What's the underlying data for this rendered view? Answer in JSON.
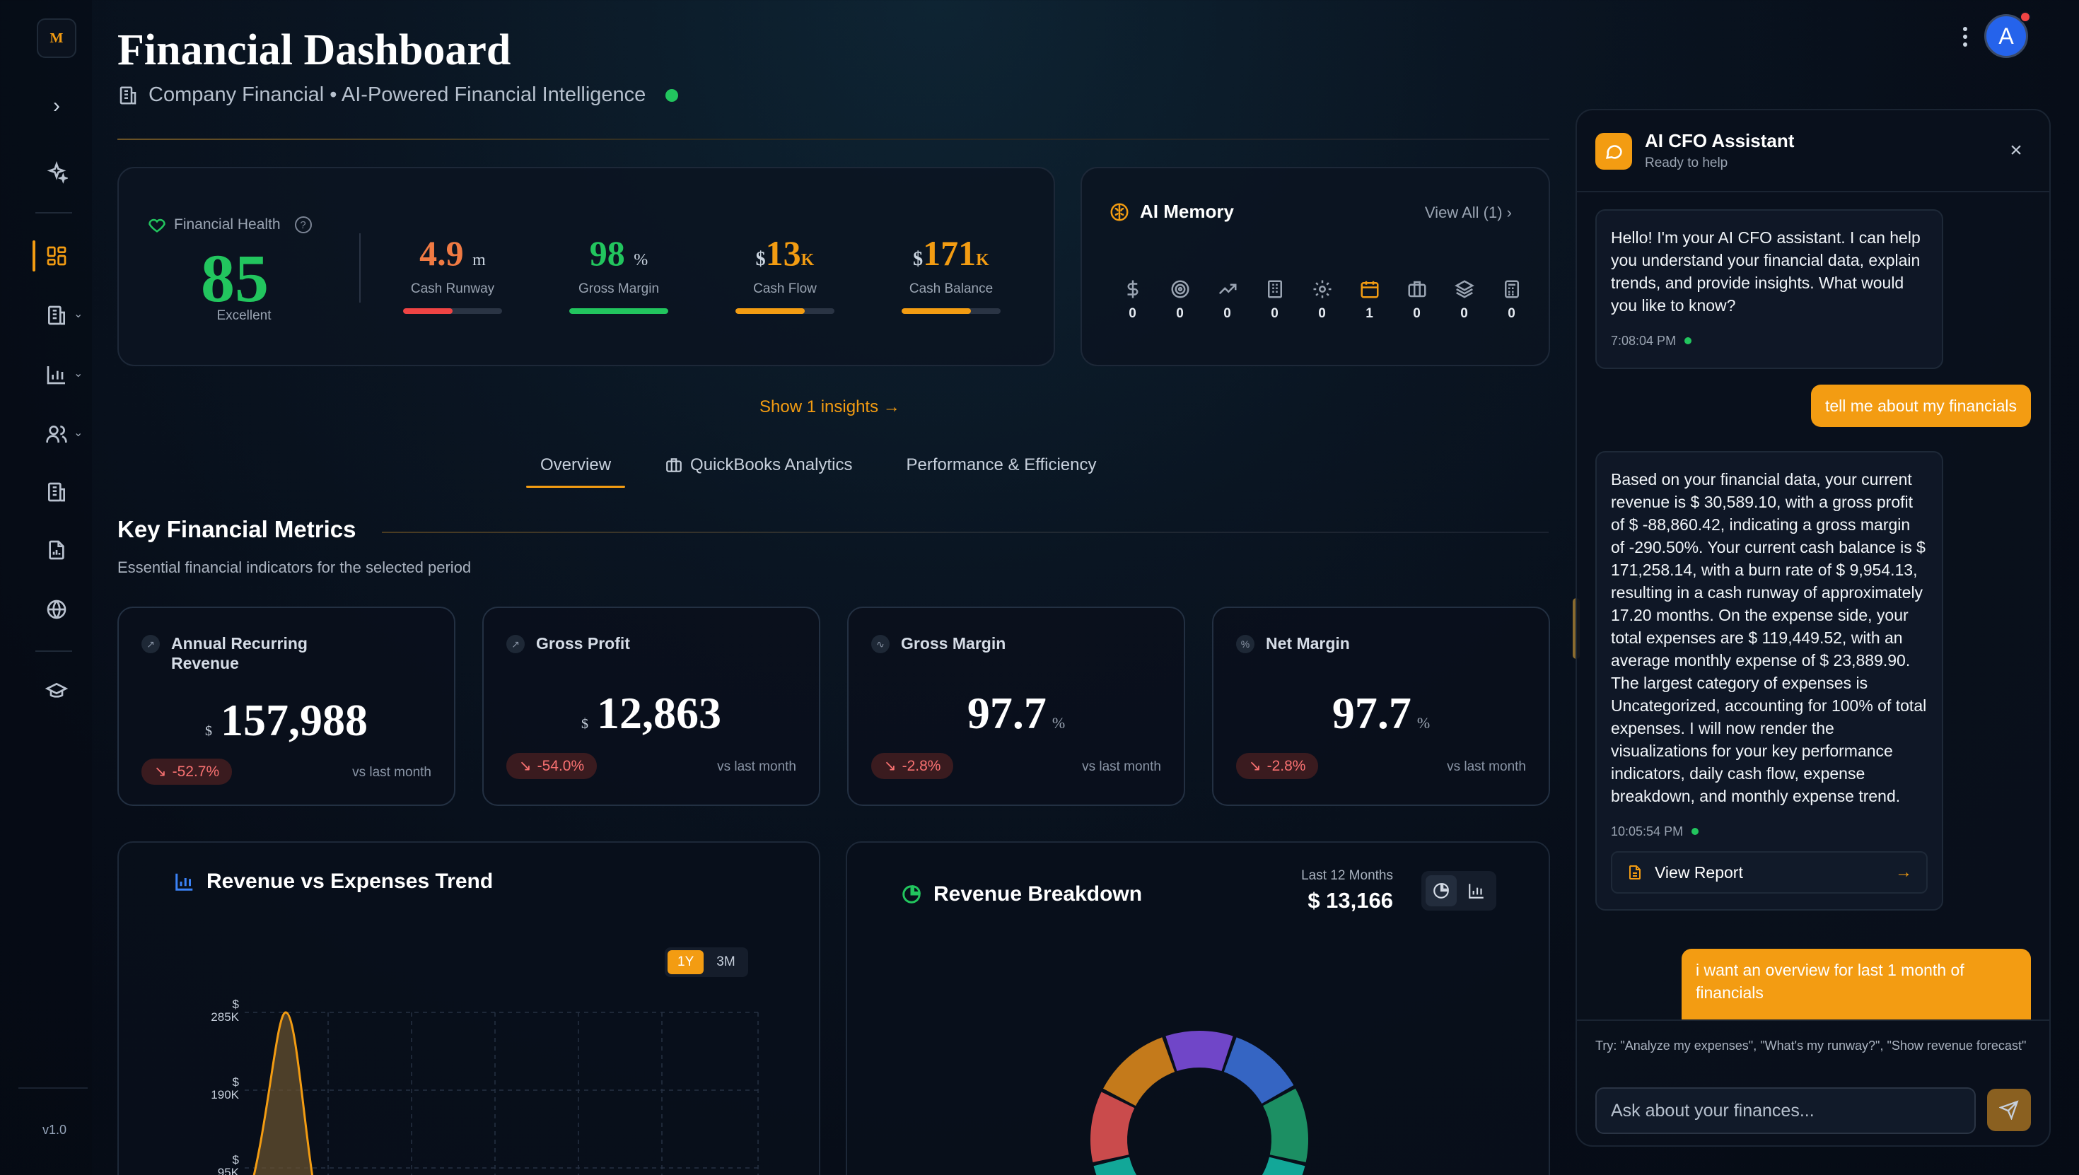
{
  "sidebar": {
    "logo": "M",
    "version": "v1.0",
    "icons": [
      "sparkles-icon",
      "dashboard-grid-icon",
      "building-icon",
      "bar-chart-icon",
      "users-icon",
      "building-icon",
      "file-chart-icon",
      "globe-icon",
      "graduation-cap-icon"
    ]
  },
  "header": {
    "title": "Financial Dashboard",
    "subtitle": "Company Financial • AI-Powered Financial Intelligence",
    "avatar_initial": "A"
  },
  "health": {
    "label": "Financial Health",
    "score": "85",
    "status": "Excellent",
    "kpis": [
      {
        "value": "4.9",
        "unit": "m",
        "currency": "",
        "label": "Cash Runway",
        "color": "#f07a43",
        "bar_color": "#ef4444",
        "progress": 0.5
      },
      {
        "value": "98",
        "unit": "%",
        "currency": "",
        "label": "Gross Margin",
        "color": "#22c55e",
        "bar_color": "#22c55e",
        "progress": 1.0
      },
      {
        "value": "13",
        "unit": "K",
        "currency": "$",
        "label": "Cash Flow",
        "color": "#f39c12",
        "bar_color": "#f39c12",
        "progress": 0.7
      },
      {
        "value": "171",
        "unit": "K",
        "currency": "$",
        "label": "Cash Balance",
        "color": "#f39c12",
        "bar_color": "#f39c12",
        "progress": 0.7
      }
    ]
  },
  "memory": {
    "title": "AI Memory",
    "view_all": "View All (1)",
    "items": [
      {
        "icon": "dollar-icon",
        "count": "0"
      },
      {
        "icon": "target-icon",
        "count": "0"
      },
      {
        "icon": "trending-up-icon",
        "count": "0"
      },
      {
        "icon": "building-icon",
        "count": "0"
      },
      {
        "icon": "gear-icon",
        "count": "0"
      },
      {
        "icon": "calendar-icon",
        "count": "1"
      },
      {
        "icon": "briefcase-icon",
        "count": "0"
      },
      {
        "icon": "layers-icon",
        "count": "0"
      },
      {
        "icon": "calculator-icon",
        "count": "0"
      }
    ]
  },
  "insights_link": "Show 1 insights →",
  "tabs": [
    "Overview",
    "QuickBooks Analytics",
    "Performance & Efficiency"
  ],
  "key_metrics": {
    "title": "Key Financial Metrics",
    "subtitle": "Essential financial indicators for the selected period",
    "cards": [
      {
        "name": "Annual Recurring Revenue",
        "prefix": "$",
        "value": "157,988",
        "suffix": "",
        "change": "-52.7%",
        "compare": "vs last month"
      },
      {
        "name": "Gross Profit",
        "prefix": "$",
        "value": "12,863",
        "suffix": "",
        "change": "-54.0%",
        "compare": "vs last month"
      },
      {
        "name": "Gross Margin",
        "prefix": "",
        "value": "97.7",
        "suffix": "%",
        "change": "-2.8%",
        "compare": "vs last month"
      },
      {
        "name": "Net Margin",
        "prefix": "",
        "value": "97.7",
        "suffix": "%",
        "change": "-2.8%",
        "compare": "vs last month"
      }
    ]
  },
  "revenue_chart": {
    "title": "Revenue vs Expenses Trend",
    "ranges": [
      "1Y",
      "3M"
    ],
    "y_ticks": [
      {
        "currency": "$",
        "label": "285K"
      },
      {
        "currency": "$",
        "label": "190K"
      },
      {
        "currency": "$",
        "label": "95K"
      }
    ]
  },
  "breakdown": {
    "title": "Revenue Breakdown",
    "period": "Last 12 Months",
    "total": "$ 13,166",
    "segment_colors": [
      "#7c4ddc",
      "#3b6fd6",
      "#1f9d6c",
      "#14b8a6",
      "#e05252",
      "#d9861c"
    ]
  },
  "assistant": {
    "title": "AI CFO Assistant",
    "status": "Ready to help",
    "messages": [
      {
        "role": "bot",
        "text": "Hello! I'm your AI CFO assistant. I can help you understand your financial data, explain trends, and provide insights. What would you like to know?",
        "time": "7:08:04 PM"
      },
      {
        "role": "user",
        "text": "tell me about my financials"
      },
      {
        "role": "bot",
        "text": "Based on your financial data, your current revenue is $ 30,589.10, with a gross profit of $ -88,860.42, indicating a gross margin of -290.50%. Your current cash balance is $ 171,258.14, with a burn rate of $ 9,954.13, resulting in a cash runway of approximately 17.20 months. On the expense side, your total expenses are $ 119,449.52, with an average monthly expense of $ 23,889.90. The largest category of expenses is Uncategorized, accounting for 100% of total expenses. I will now render the visualizations for your key performance indicators, daily cash flow, expense breakdown, and monthly expense trend.",
        "time": "10:05:54 PM",
        "action": "View Report"
      },
      {
        "role": "user",
        "text": "i want an overview for last 1 month of financials"
      }
    ],
    "hint": "Try: \"Analyze my expenses\", \"What's my runway?\", \"Show revenue forecast\"",
    "input_placeholder": "Ask about your finances..."
  }
}
